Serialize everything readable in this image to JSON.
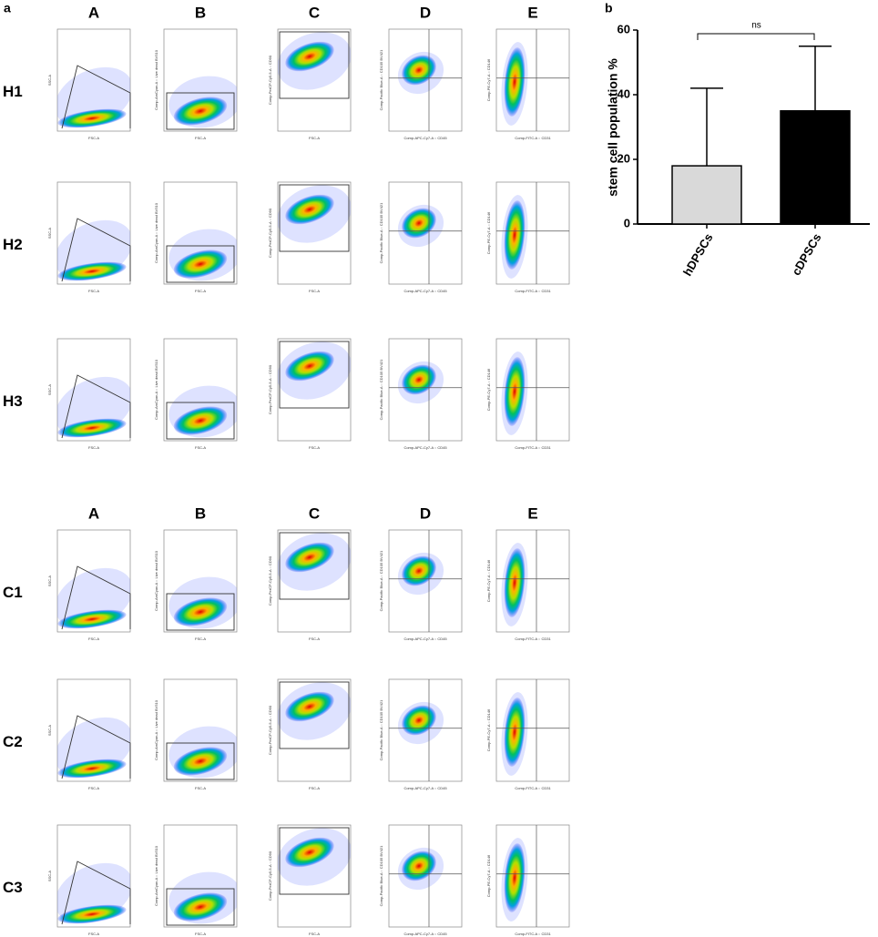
{
  "panel_a": {
    "label": "a",
    "columns": [
      "A",
      "B",
      "C",
      "D",
      "E"
    ],
    "rows": [
      "H1",
      "H2",
      "H3",
      "C1",
      "C2",
      "C3"
    ],
    "x_axis_labels": [
      "FSC-A",
      "FSC-A",
      "FSC-A",
      "Comp-APC-Cy7-A :: CD45",
      "Comp-FITC-A :: CD31"
    ],
    "y_axis_labels": [
      "SSC-A",
      "Comp-AmCyan-A :: Live dead BV510",
      "Comp-PerCP-Cy5-5-A :: CD90",
      "Comp-Pacific Blue-A :: CD105 BV421",
      "Comp-PE-Cy7-A :: CD146"
    ]
  },
  "chart_data": {
    "type": "bar",
    "label": "b",
    "y_label": "stem cell population %",
    "categories": [
      "hDPSCs",
      "cDPSCs"
    ],
    "values": [
      18,
      35
    ],
    "errors": [
      24,
      20
    ],
    "colors": [
      "#d9d9d9",
      "#000000"
    ],
    "ylim": [
      0,
      60
    ],
    "yticks": [
      0,
      20,
      40,
      60
    ],
    "annotation": "ns"
  }
}
